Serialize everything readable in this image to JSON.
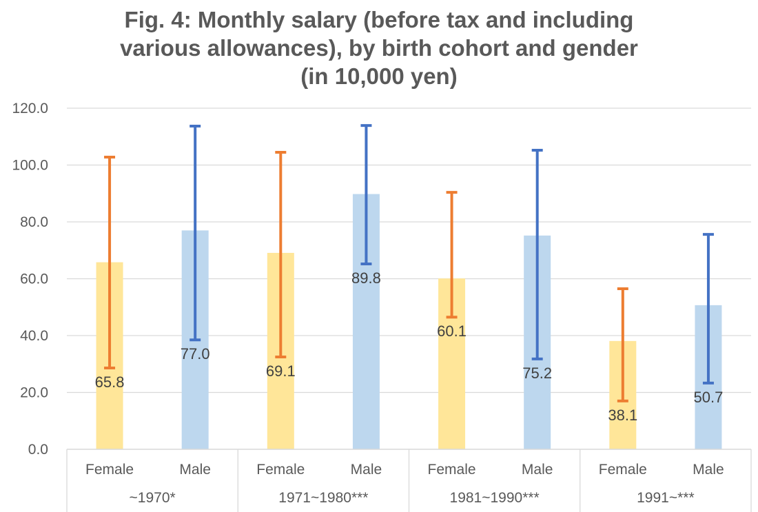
{
  "chart_data": {
    "type": "bar",
    "title_lines": [
      "Fig. 4: Monthly salary (before tax and including",
      "various allowances), by birth cohort and gender",
      "(in 10,000 yen)"
    ],
    "xlabel": "",
    "ylabel": "",
    "ylim": [
      0,
      120
    ],
    "yticks": [
      0,
      20,
      40,
      60,
      80,
      100,
      120
    ],
    "ytick_labels": [
      "0.0",
      "20.0",
      "40.0",
      "60.0",
      "80.0",
      "100.0",
      "120.0"
    ],
    "grid": true,
    "legend": "none",
    "groups": [
      {
        "label": "~1970*",
        "bars": [
          {
            "category": "Female",
            "value": 65.8,
            "label": "65.8",
            "error_low": 28.6,
            "error_high": 102.8,
            "series": "Female"
          },
          {
            "category": "Male",
            "value": 77.0,
            "label": "77.0",
            "error_low": 38.5,
            "error_high": 113.7,
            "series": "Male"
          }
        ]
      },
      {
        "label": "1971~1980***",
        "bars": [
          {
            "category": "Female",
            "value": 69.1,
            "label": "69.1",
            "error_low": 32.5,
            "error_high": 104.5,
            "series": "Female"
          },
          {
            "category": "Male",
            "value": 89.8,
            "label": "89.8",
            "error_low": 65.2,
            "error_high": 113.9,
            "series": "Male"
          }
        ]
      },
      {
        "label": "1981~1990***",
        "bars": [
          {
            "category": "Female",
            "value": 60.1,
            "label": "60.1",
            "error_low": 46.5,
            "error_high": 90.4,
            "series": "Female"
          },
          {
            "category": "Male",
            "value": 75.2,
            "label": "75.2",
            "error_low": 31.8,
            "error_high": 105.2,
            "series": "Male"
          }
        ]
      },
      {
        "label": "1991~***",
        "bars": [
          {
            "category": "Female",
            "value": 38.1,
            "label": "38.1",
            "error_low": 17.0,
            "error_high": 56.5,
            "series": "Female"
          },
          {
            "category": "Male",
            "value": 50.7,
            "label": "50.7",
            "error_low": 23.3,
            "error_high": 75.6,
            "series": "Male"
          }
        ]
      }
    ],
    "series_colors": {
      "Female": {
        "bar": "#FFE699",
        "error": "#ED7D31"
      },
      "Male": {
        "bar": "#BDD7EE",
        "error": "#4472C4"
      }
    }
  }
}
